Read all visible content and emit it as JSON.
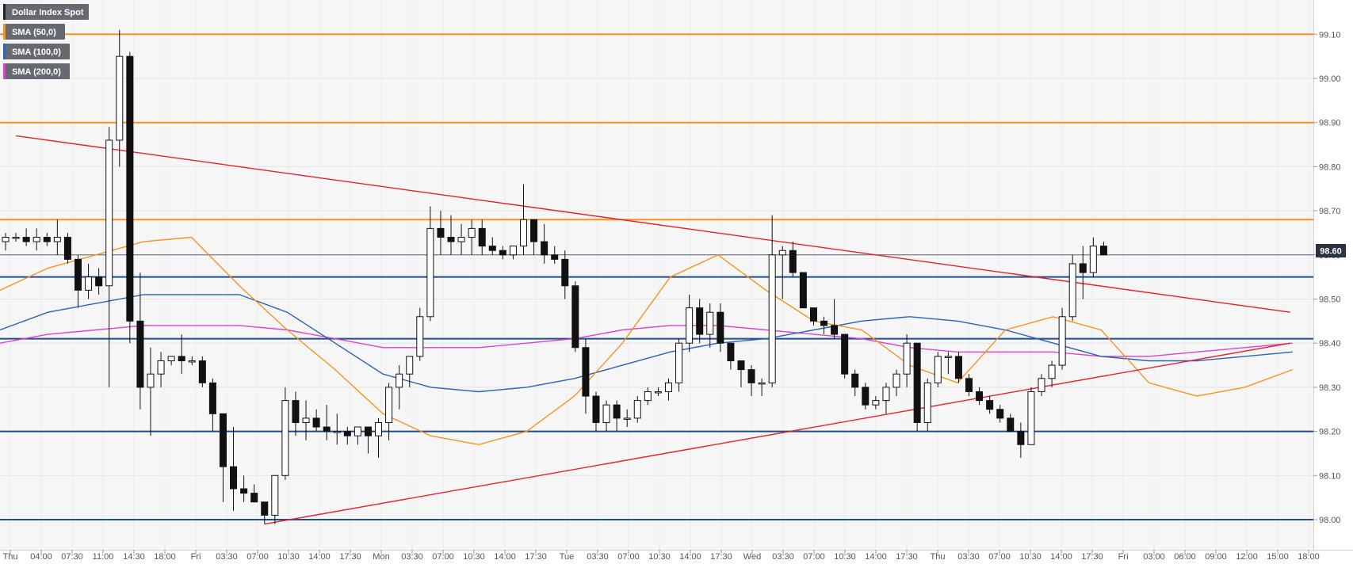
{
  "chart_data": {
    "type": "candlestick",
    "title": "Dollar Index Spot",
    "legend": [
      {
        "label": "Dollar Index Spot",
        "color": "#222222"
      },
      {
        "label": "SMA (50,0)",
        "color": "#f7931a"
      },
      {
        "label": "SMA (100,0)",
        "color": "#2962b8"
      },
      {
        "label": "SMA (200,0)",
        "color": "#e040d0"
      }
    ],
    "legend_position": "top-left",
    "ylim": [
      97.94,
      99.19
    ],
    "y_ticks": [
      "98.00",
      "98.10",
      "98.20",
      "98.30",
      "98.40",
      "98.50",
      "98.60",
      "98.70",
      "98.80",
      "98.90",
      "99.00",
      "99.10"
    ],
    "x_tick_labels": [
      "Thu",
      "04:00",
      "07:30",
      "11:00",
      "14:30",
      "18:00",
      "Fri",
      "03:30",
      "07:00",
      "10:30",
      "14:00",
      "17:30",
      "Mon",
      "03:30",
      "07:00",
      "10:30",
      "14:00",
      "17:30",
      "Tue",
      "03:30",
      "07:00",
      "10:30",
      "14:00",
      "17:30",
      "Wed",
      "03:30",
      "07:00",
      "10:30",
      "14:00",
      "17:30",
      "Thu",
      "03:30",
      "07:00",
      "10:30",
      "14:00",
      "17:30",
      "Fri",
      "03:00",
      "06:00",
      "09:00",
      "12:00",
      "15:00",
      "18:00"
    ],
    "current_price": 98.6,
    "current_price_label": "98.60",
    "grid": true,
    "resistance_levels": [
      99.1,
      98.9,
      98.68
    ],
    "support_levels": [
      98.55,
      98.41,
      98.2,
      98.0
    ],
    "trendlines": [
      {
        "name": "descending trendline",
        "points": [
          [
            1,
            98.87
          ],
          [
            124,
            98.47
          ]
        ]
      },
      {
        "name": "ascending trendline",
        "points": [
          [
            25,
            97.99
          ],
          [
            124,
            98.4
          ]
        ]
      }
    ],
    "candles_ohlc": [
      [
        98.63,
        98.65,
        98.61,
        98.64
      ],
      [
        98.64,
        98.65,
        98.63,
        98.64
      ],
      [
        98.64,
        98.66,
        98.62,
        98.63
      ],
      [
        98.63,
        98.66,
        98.61,
        98.64
      ],
      [
        98.64,
        98.65,
        98.62,
        98.63
      ],
      [
        98.63,
        98.68,
        98.6,
        98.64
      ],
      [
        98.64,
        98.65,
        98.58,
        98.59
      ],
      [
        98.59,
        98.6,
        98.48,
        98.52
      ],
      [
        98.52,
        98.58,
        98.5,
        98.55
      ],
      [
        98.55,
        98.57,
        98.51,
        98.53
      ],
      [
        98.53,
        98.89,
        98.3,
        98.86
      ],
      [
        98.86,
        99.11,
        98.8,
        99.05
      ],
      [
        99.05,
        99.06,
        98.4,
        98.45
      ],
      [
        98.45,
        98.56,
        98.25,
        98.3
      ],
      [
        98.3,
        98.39,
        98.19,
        98.33
      ],
      [
        98.33,
        98.38,
        98.3,
        98.36
      ],
      [
        98.36,
        98.37,
        98.35,
        98.37
      ],
      [
        98.37,
        98.42,
        98.33,
        98.36
      ],
      [
        98.36,
        98.37,
        98.35,
        98.36
      ],
      [
        98.36,
        98.37,
        98.3,
        98.31
      ],
      [
        98.31,
        98.32,
        98.2,
        98.24
      ],
      [
        98.24,
        98.24,
        98.04,
        98.12
      ],
      [
        98.12,
        98.21,
        98.02,
        98.07
      ],
      [
        98.07,
        98.1,
        98.04,
        98.06
      ],
      [
        98.06,
        98.08,
        98.04,
        98.04
      ],
      [
        98.04,
        98.04,
        97.99,
        98.01
      ],
      [
        98.01,
        98.1,
        97.99,
        98.1
      ],
      [
        98.1,
        98.3,
        98.09,
        98.27
      ],
      [
        98.27,
        98.29,
        98.19,
        98.22
      ],
      [
        98.22,
        98.27,
        98.18,
        98.23
      ],
      [
        98.23,
        98.25,
        98.2,
        98.21
      ],
      [
        98.21,
        98.26,
        98.18,
        98.2
      ],
      [
        98.2,
        98.24,
        98.17,
        98.2
      ],
      [
        98.2,
        98.21,
        98.17,
        98.19
      ],
      [
        98.19,
        98.21,
        98.17,
        98.21
      ],
      [
        98.21,
        98.21,
        98.15,
        98.19
      ],
      [
        98.19,
        98.23,
        98.14,
        98.22
      ],
      [
        98.22,
        98.31,
        98.18,
        98.3
      ],
      [
        98.3,
        98.35,
        98.25,
        98.33
      ],
      [
        98.33,
        98.37,
        98.3,
        98.37
      ],
      [
        98.37,
        98.48,
        98.36,
        98.46
      ],
      [
        98.46,
        98.71,
        98.45,
        98.66
      ],
      [
        98.66,
        98.7,
        98.6,
        98.64
      ],
      [
        98.64,
        98.69,
        98.6,
        98.63
      ],
      [
        98.63,
        98.67,
        98.6,
        98.64
      ],
      [
        98.64,
        98.68,
        98.6,
        98.66
      ],
      [
        98.66,
        98.68,
        98.6,
        98.62
      ],
      [
        98.62,
        98.64,
        98.6,
        98.61
      ],
      [
        98.61,
        98.62,
        98.59,
        98.6
      ],
      [
        98.6,
        98.62,
        98.59,
        98.62
      ],
      [
        98.62,
        98.76,
        98.6,
        98.68
      ],
      [
        98.68,
        98.68,
        98.6,
        98.63
      ],
      [
        98.63,
        98.67,
        98.58,
        98.6
      ],
      [
        98.6,
        98.62,
        98.58,
        98.59
      ],
      [
        98.59,
        98.61,
        98.5,
        98.53
      ],
      [
        98.53,
        98.54,
        98.38,
        98.39
      ],
      [
        98.39,
        98.41,
        98.24,
        98.28
      ],
      [
        98.28,
        98.29,
        98.2,
        98.22
      ],
      [
        98.22,
        98.27,
        98.2,
        98.26
      ],
      [
        98.26,
        98.27,
        98.2,
        98.23
      ],
      [
        98.23,
        98.25,
        98.21,
        98.23
      ],
      [
        98.23,
        98.28,
        98.22,
        98.27
      ],
      [
        98.27,
        98.3,
        98.26,
        98.29
      ],
      [
        98.29,
        98.3,
        98.28,
        98.29
      ],
      [
        98.29,
        98.32,
        98.27,
        98.31
      ],
      [
        98.31,
        98.41,
        98.29,
        98.4
      ],
      [
        98.4,
        98.51,
        98.38,
        98.48
      ],
      [
        98.48,
        98.5,
        98.4,
        98.42
      ],
      [
        98.42,
        98.49,
        98.39,
        98.47
      ],
      [
        98.47,
        98.49,
        98.38,
        98.4
      ],
      [
        98.4,
        98.4,
        98.34,
        98.36
      ],
      [
        98.36,
        98.36,
        98.3,
        98.34
      ],
      [
        98.34,
        98.35,
        98.28,
        98.31
      ],
      [
        98.31,
        98.32,
        98.28,
        98.31
      ],
      [
        98.31,
        98.69,
        98.3,
        98.6
      ],
      [
        98.6,
        98.62,
        98.5,
        98.61
      ],
      [
        98.61,
        98.63,
        98.55,
        98.56
      ],
      [
        98.56,
        98.56,
        98.48,
        98.48
      ],
      [
        98.48,
        98.48,
        98.44,
        98.45
      ],
      [
        98.45,
        98.46,
        98.42,
        98.44
      ],
      [
        98.44,
        98.5,
        98.41,
        98.42
      ],
      [
        98.42,
        98.42,
        98.32,
        98.33
      ],
      [
        98.33,
        98.34,
        98.28,
        98.3
      ],
      [
        98.3,
        98.31,
        98.25,
        98.26
      ],
      [
        98.26,
        98.28,
        98.25,
        98.27
      ],
      [
        98.27,
        98.31,
        98.24,
        98.3
      ],
      [
        98.3,
        98.34,
        98.28,
        98.33
      ],
      [
        98.33,
        98.42,
        98.3,
        98.4
      ],
      [
        98.4,
        98.4,
        98.2,
        98.22
      ],
      [
        98.22,
        98.32,
        98.2,
        98.31
      ],
      [
        98.31,
        98.38,
        98.3,
        98.37
      ],
      [
        98.37,
        98.38,
        98.33,
        98.37
      ],
      [
        98.37,
        98.38,
        98.31,
        98.32
      ],
      [
        98.32,
        98.33,
        98.28,
        98.29
      ],
      [
        98.29,
        98.3,
        98.26,
        98.27
      ],
      [
        98.27,
        98.28,
        98.24,
        98.25
      ],
      [
        98.25,
        98.26,
        98.22,
        98.23
      ],
      [
        98.23,
        98.24,
        98.2,
        98.2
      ],
      [
        98.2,
        98.22,
        98.14,
        98.17
      ],
      [
        98.17,
        98.3,
        98.17,
        98.29
      ],
      [
        98.29,
        98.33,
        98.28,
        98.32
      ],
      [
        98.32,
        98.36,
        98.3,
        98.35
      ],
      [
        98.35,
        98.48,
        98.34,
        98.46
      ],
      [
        98.46,
        98.6,
        98.45,
        98.58
      ],
      [
        98.58,
        98.62,
        98.5,
        98.56
      ],
      [
        98.56,
        98.64,
        98.55,
        98.62
      ],
      [
        98.62,
        98.63,
        98.6,
        98.6
      ]
    ],
    "sma_50_y": [
      98.52,
      98.57,
      98.6,
      98.63,
      98.64,
      98.53,
      98.43,
      98.34,
      98.24,
      98.19,
      98.17,
      98.2,
      98.28,
      98.4,
      98.55,
      98.6,
      98.52,
      98.45,
      98.43,
      98.35,
      98.31,
      98.43,
      98.46,
      98.43,
      98.31,
      98.28,
      98.3,
      98.34
    ],
    "sma_100_y": [
      98.43,
      98.47,
      98.49,
      98.51,
      98.51,
      98.51,
      98.47,
      98.4,
      98.33,
      98.3,
      98.29,
      98.3,
      98.32,
      98.35,
      98.38,
      98.4,
      98.41,
      98.43,
      98.45,
      98.46,
      98.45,
      98.43,
      98.4,
      98.37,
      98.36,
      98.36,
      98.37,
      98.38
    ],
    "sma_200_y": [
      98.4,
      98.42,
      98.43,
      98.44,
      98.44,
      98.44,
      98.43,
      98.41,
      98.39,
      98.39,
      98.39,
      98.4,
      98.41,
      98.43,
      98.44,
      98.44,
      98.43,
      98.42,
      98.41,
      98.39,
      98.38,
      98.38,
      98.38,
      98.37,
      98.37,
      98.38,
      98.39,
      98.4
    ]
  }
}
